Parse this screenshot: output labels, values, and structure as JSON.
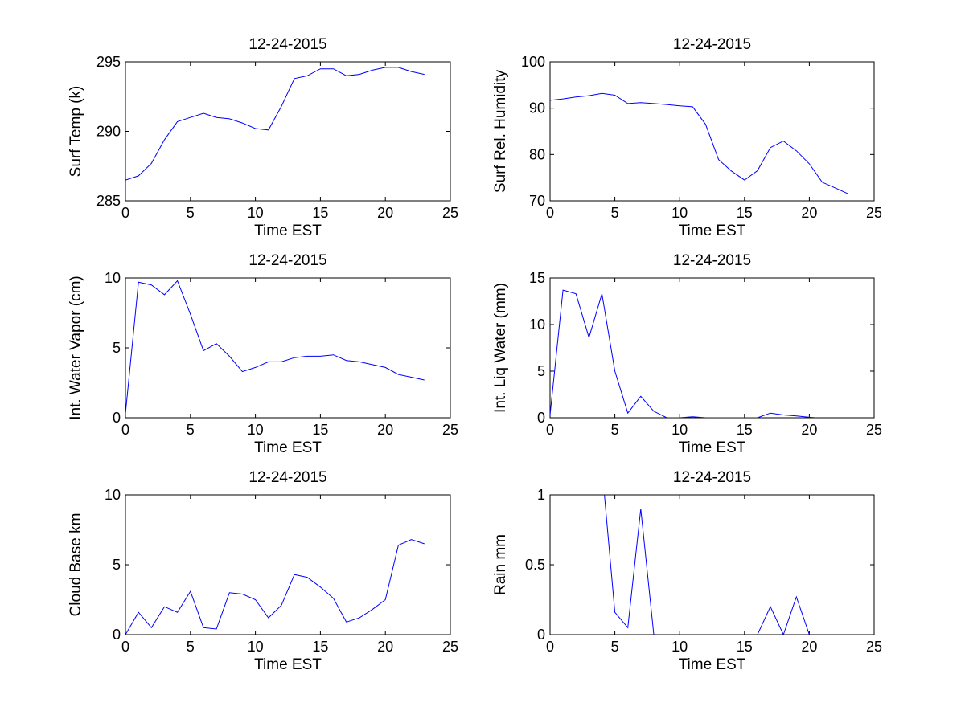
{
  "chart_data": [
    {
      "type": "line",
      "title": "12-24-2015",
      "xlabel": "Time EST",
      "ylabel": "Surf Temp (k)",
      "xlim": [
        0,
        25
      ],
      "ylim": [
        285,
        295
      ],
      "xticks": [
        0,
        5,
        10,
        15,
        20,
        25
      ],
      "yticks": [
        285,
        290,
        295
      ],
      "grid": false,
      "series": [
        {
          "color": "#0000ff",
          "x": [
            0,
            1,
            2,
            3,
            4,
            5,
            6,
            7,
            8,
            9,
            10,
            11,
            12,
            13,
            14,
            15,
            16,
            17,
            18,
            19,
            20,
            21,
            22,
            23
          ],
          "y": [
            286.5,
            286.8,
            287.7,
            289.4,
            290.7,
            291.0,
            291.3,
            291.0,
            290.9,
            290.6,
            290.2,
            290.1,
            291.8,
            293.8,
            294.0,
            294.5,
            294.5,
            294.0,
            294.1,
            294.4,
            294.6,
            294.6,
            294.3,
            294.1
          ]
        }
      ]
    },
    {
      "type": "line",
      "title": "12-24-2015",
      "xlabel": "Time EST",
      "ylabel": "Surf Rel. Humidity",
      "xlim": [
        0,
        25
      ],
      "ylim": [
        70,
        100
      ],
      "xticks": [
        0,
        5,
        10,
        15,
        20,
        25
      ],
      "yticks": [
        70,
        80,
        90,
        100
      ],
      "grid": false,
      "series": [
        {
          "color": "#0000ff",
          "x": [
            0,
            1,
            2,
            3,
            4,
            5,
            6,
            7,
            8,
            9,
            10,
            11,
            12,
            13,
            14,
            15,
            16,
            17,
            18,
            19,
            20,
            21,
            22,
            23
          ],
          "y": [
            91.7,
            92.0,
            92.4,
            92.7,
            93.2,
            92.8,
            91.0,
            91.2,
            91.0,
            90.8,
            90.5,
            90.3,
            86.5,
            78.9,
            76.4,
            74.5,
            76.5,
            81.5,
            82.9,
            80.8,
            78.0,
            74.0,
            72.8,
            71.5
          ]
        }
      ]
    },
    {
      "type": "line",
      "title": "12-24-2015",
      "xlabel": "Time EST",
      "ylabel": "Int. Water Vapor (cm)",
      "xlim": [
        0,
        25
      ],
      "ylim": [
        0,
        10
      ],
      "xticks": [
        0,
        5,
        10,
        15,
        20,
        25
      ],
      "yticks": [
        0,
        5,
        10
      ],
      "grid": false,
      "series": [
        {
          "color": "#0000ff",
          "x": [
            0,
            1,
            2,
            3,
            4,
            5,
            6,
            7,
            8,
            9,
            10,
            11,
            12,
            13,
            14,
            15,
            16,
            17,
            18,
            19,
            20,
            21,
            22,
            23
          ],
          "y": [
            0.3,
            9.7,
            9.5,
            8.8,
            9.8,
            7.4,
            4.8,
            5.3,
            4.4,
            3.3,
            3.6,
            4.0,
            4.0,
            4.3,
            4.4,
            4.4,
            4.5,
            4.1,
            4.0,
            3.8,
            3.6,
            3.1,
            2.9,
            2.7
          ]
        }
      ]
    },
    {
      "type": "line",
      "title": "12-24-2015",
      "xlabel": "Time EST",
      "ylabel": "Int. Liq Water (mm)",
      "xlim": [
        0,
        25
      ],
      "ylim": [
        0,
        15
      ],
      "xticks": [
        0,
        5,
        10,
        15,
        20,
        25
      ],
      "yticks": [
        0,
        5,
        10,
        15
      ],
      "grid": false,
      "series": [
        {
          "color": "#0000ff",
          "x": [
            0,
            1,
            2,
            3,
            4,
            5,
            6,
            7,
            8,
            9,
            10,
            11,
            12,
            13,
            14,
            15,
            16,
            17,
            18,
            19,
            20,
            20.5
          ],
          "y": [
            0.3,
            13.7,
            13.3,
            8.6,
            13.3,
            5.0,
            0.5,
            2.3,
            0.7,
            0.0,
            0.0,
            0.1,
            0.0,
            0.0,
            0.0,
            0.0,
            0.0,
            0.5,
            0.3,
            0.2,
            0.05,
            0.0
          ]
        }
      ]
    },
    {
      "type": "line",
      "title": "12-24-2015",
      "xlabel": "Time EST",
      "ylabel": "Cloud Base km",
      "xlim": [
        0,
        25
      ],
      "ylim": [
        0,
        10
      ],
      "xticks": [
        0,
        5,
        10,
        15,
        20,
        25
      ],
      "yticks": [
        0,
        5,
        10
      ],
      "grid": false,
      "series": [
        {
          "color": "#0000ff",
          "x": [
            0,
            1,
            2,
            3,
            4,
            5,
            6,
            7,
            8,
            9,
            10,
            11,
            12,
            13,
            14,
            15,
            16,
            17,
            18,
            19,
            20,
            21,
            22,
            23
          ],
          "y": [
            0.0,
            1.6,
            0.5,
            2.0,
            1.6,
            3.1,
            0.5,
            0.4,
            3.0,
            2.9,
            2.5,
            1.2,
            2.1,
            4.3,
            4.1,
            3.4,
            2.6,
            0.9,
            1.2,
            1.8,
            2.5,
            6.4,
            6.8,
            6.5
          ]
        }
      ]
    },
    {
      "type": "line",
      "title": "12-24-2015",
      "xlabel": "Time EST",
      "ylabel": "Rain mm",
      "xlim": [
        0,
        25
      ],
      "ylim": [
        0,
        1
      ],
      "xticks": [
        0,
        5,
        10,
        15,
        20,
        25
      ],
      "yticks": [
        0,
        0.5,
        1
      ],
      "grid": false,
      "series": [
        {
          "color": "#0000ff",
          "segments": [
            {
              "x": [
                4,
                5,
                6,
                7,
                8
              ],
              "y": [
                1.2,
                0.16,
                0.05,
                0.9,
                0.0
              ]
            },
            {
              "x": [
                16,
                17,
                18,
                19,
                20
              ],
              "y": [
                0.0,
                0.2,
                0.0,
                0.27,
                0.0
              ]
            }
          ]
        }
      ]
    }
  ]
}
